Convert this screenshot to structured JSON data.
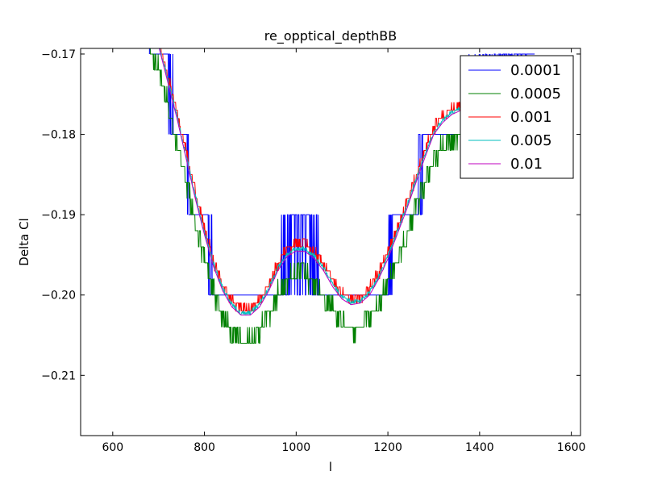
{
  "chart_data": {
    "type": "line",
    "title": "re_opptical_depthBB",
    "xlabel": "l",
    "ylabel": "Delta Cl",
    "xlim": [
      530,
      1620
    ],
    "ylim": [
      -0.2175,
      -0.1693
    ],
    "xticks": [
      600,
      800,
      1000,
      1200,
      1400,
      1600
    ],
    "xtick_labels": [
      "600",
      "800",
      "1000",
      "1200",
      "1400",
      "1600"
    ],
    "yticks": [
      -0.17,
      -0.18,
      -0.19,
      -0.2,
      -0.21
    ],
    "ytick_labels": [
      "−0.17",
      "−0.18",
      "−0.19",
      "−0.20",
      "−0.21"
    ],
    "grid": false,
    "legend_position": "top-right",
    "series": [
      {
        "name": "0.0001",
        "color": "#0000ff",
        "step": 0.01,
        "noise": 0.0018,
        "offset": 0.0
      },
      {
        "name": "0.0005",
        "color": "#008000",
        "step": 0.002,
        "noise": 0.0012,
        "offset": -0.003
      },
      {
        "name": "0.001",
        "color": "#ff0000",
        "step": 0.001,
        "noise": 0.0006,
        "offset": 0.0008
      },
      {
        "name": "0.005",
        "color": "#00bfbf",
        "step": 0.0002,
        "noise": 0.0003,
        "offset": 0.0003
      },
      {
        "name": "0.01",
        "color": "#bf00bf",
        "step": 0.0,
        "noise": 0.0,
        "offset": 0.0
      }
    ],
    "base_curve": {
      "x": [
        680,
        700,
        720,
        740,
        760,
        780,
        800,
        820,
        840,
        860,
        880,
        900,
        920,
        940,
        960,
        980,
        1000,
        1020,
        1040,
        1060,
        1080,
        1100,
        1120,
        1140,
        1160,
        1180,
        1200,
        1220,
        1240,
        1260,
        1280,
        1300,
        1320,
        1340,
        1360,
        1380,
        1400,
        1420,
        1440,
        1460,
        1480,
        1500,
        1520
      ],
      "y": [
        -0.1655,
        -0.169,
        -0.1735,
        -0.178,
        -0.183,
        -0.188,
        -0.1925,
        -0.1965,
        -0.1995,
        -0.2015,
        -0.2025,
        -0.2025,
        -0.2015,
        -0.1995,
        -0.197,
        -0.1952,
        -0.1945,
        -0.1946,
        -0.1955,
        -0.197,
        -0.199,
        -0.2005,
        -0.2012,
        -0.201,
        -0.2,
        -0.198,
        -0.1955,
        -0.1925,
        -0.1895,
        -0.1862,
        -0.183,
        -0.18,
        -0.1785,
        -0.1775,
        -0.177,
        -0.1765,
        -0.176,
        -0.1755,
        -0.175,
        -0.1745,
        -0.174,
        -0.1735,
        -0.173
      ]
    }
  }
}
